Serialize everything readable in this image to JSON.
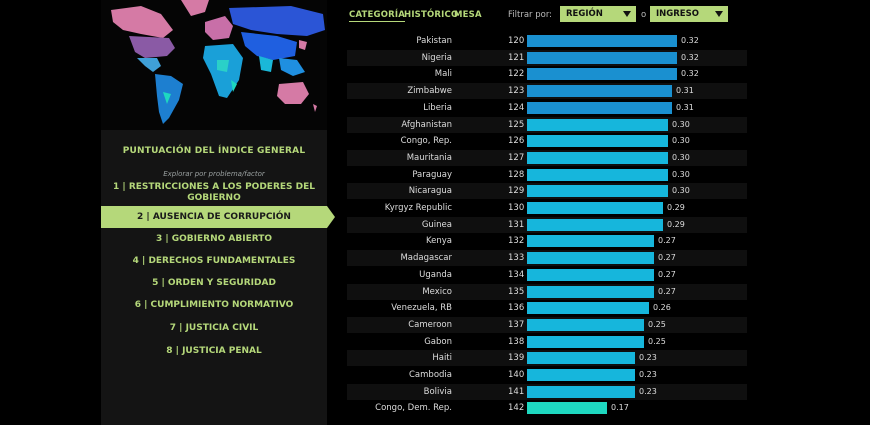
{
  "tabs": [
    {
      "label": "CATEGORÍA",
      "active": true
    },
    {
      "label": "HISTÓRICO",
      "active": false
    },
    {
      "label": "MESA",
      "active": false
    }
  ],
  "filters": {
    "label": "Filtrar por:",
    "region": "REGIÓN",
    "connector": "o",
    "income": "INGRESO"
  },
  "sidebar": {
    "title": "PUNTUACIÓN DEL ÍNDICE GENERAL",
    "subtitle": "Explorar por problema/factor",
    "items": [
      {
        "line1": "1 | RESTRICCIONES A LOS PODERES DEL",
        "line2": "GOBIERNO",
        "active": false
      },
      {
        "line1": "2 | AUSENCIA DE CORRUPCIÓN",
        "active": true
      },
      {
        "line1": "3 | GOBIERNO ABIERTO",
        "active": false
      },
      {
        "line1": "4 | DERECHOS FUNDAMENTALES",
        "active": false
      },
      {
        "line1": "5 | ORDEN Y SEGURIDAD",
        "active": false
      },
      {
        "line1": "6 | CUMPLIMIENTO NORMATIVO",
        "active": false
      },
      {
        "line1": "7 | JUSTICIA CIVIL",
        "active": false
      },
      {
        "line1": "8 | JUSTICIA PENAL",
        "active": false
      }
    ]
  },
  "colors": {
    "accent": "#b5d87a",
    "bar_high": "#1a90d0",
    "bar_mid": "#16b6dc",
    "bar_low": "#1ed8c0"
  },
  "ranking": [
    {
      "country": "Pakistan",
      "rank": "120",
      "value": "0.32",
      "score": 0.32
    },
    {
      "country": "Nigeria",
      "rank": "121",
      "value": "0.32",
      "score": 0.32
    },
    {
      "country": "Mali",
      "rank": "122",
      "value": "0.32",
      "score": 0.32
    },
    {
      "country": "Zimbabwe",
      "rank": "123",
      "value": "0.31",
      "score": 0.31
    },
    {
      "country": "Liberia",
      "rank": "124",
      "value": "0.31",
      "score": 0.31
    },
    {
      "country": "Afghanistan",
      "rank": "125",
      "value": "0.30",
      "score": 0.3
    },
    {
      "country": "Congo, Rep.",
      "rank": "126",
      "value": "0.30",
      "score": 0.3
    },
    {
      "country": "Mauritania",
      "rank": "127",
      "value": "0.30",
      "score": 0.3
    },
    {
      "country": "Paraguay",
      "rank": "128",
      "value": "0.30",
      "score": 0.3
    },
    {
      "country": "Nicaragua",
      "rank": "129",
      "value": "0.30",
      "score": 0.3
    },
    {
      "country": "Kyrgyz Republic",
      "rank": "130",
      "value": "0.29",
      "score": 0.29
    },
    {
      "country": "Guinea",
      "rank": "131",
      "value": "0.29",
      "score": 0.29
    },
    {
      "country": "Kenya",
      "rank": "132",
      "value": "0.27",
      "score": 0.27
    },
    {
      "country": "Madagascar",
      "rank": "133",
      "value": "0.27",
      "score": 0.27
    },
    {
      "country": "Uganda",
      "rank": "134",
      "value": "0.27",
      "score": 0.27
    },
    {
      "country": "Mexico",
      "rank": "135",
      "value": "0.27",
      "score": 0.27
    },
    {
      "country": "Venezuela, RB",
      "rank": "136",
      "value": "0.26",
      "score": 0.26
    },
    {
      "country": "Cameroon",
      "rank": "137",
      "value": "0.25",
      "score": 0.25
    },
    {
      "country": "Gabon",
      "rank": "138",
      "value": "0.25",
      "score": 0.25
    },
    {
      "country": "Haiti",
      "rank": "139",
      "value": "0.23",
      "score": 0.23
    },
    {
      "country": "Cambodia",
      "rank": "140",
      "value": "0.23",
      "score": 0.23
    },
    {
      "country": "Bolivia",
      "rank": "141",
      "value": "0.23",
      "score": 0.23
    },
    {
      "country": "Congo, Dem. Rep.",
      "rank": "142",
      "value": "0.17",
      "score": 0.17
    }
  ]
}
